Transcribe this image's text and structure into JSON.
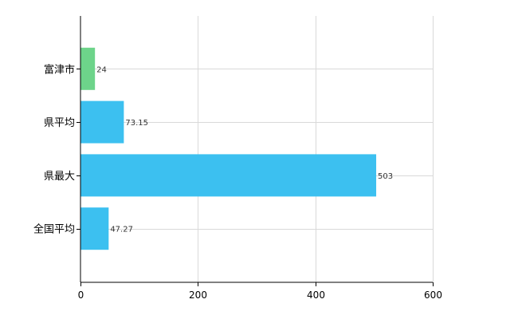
{
  "chart_data": {
    "type": "bar",
    "orientation": "horizontal",
    "categories": [
      "富津市",
      "県平均",
      "県最大",
      "全国平均"
    ],
    "values": [
      24,
      73.15,
      503,
      47.27
    ],
    "data_labels": [
      "24",
      "73.15",
      "503",
      "47.27"
    ],
    "colors": [
      "#6dd48a",
      "#3cc0f0",
      "#3cc0f0",
      "#3cc0f0"
    ],
    "xlim": [
      0,
      600
    ],
    "xticks": [
      0,
      200,
      400,
      600
    ],
    "xtick_labels": [
      "0",
      "200",
      "400",
      "600"
    ],
    "grid": true,
    "legend": "none"
  }
}
